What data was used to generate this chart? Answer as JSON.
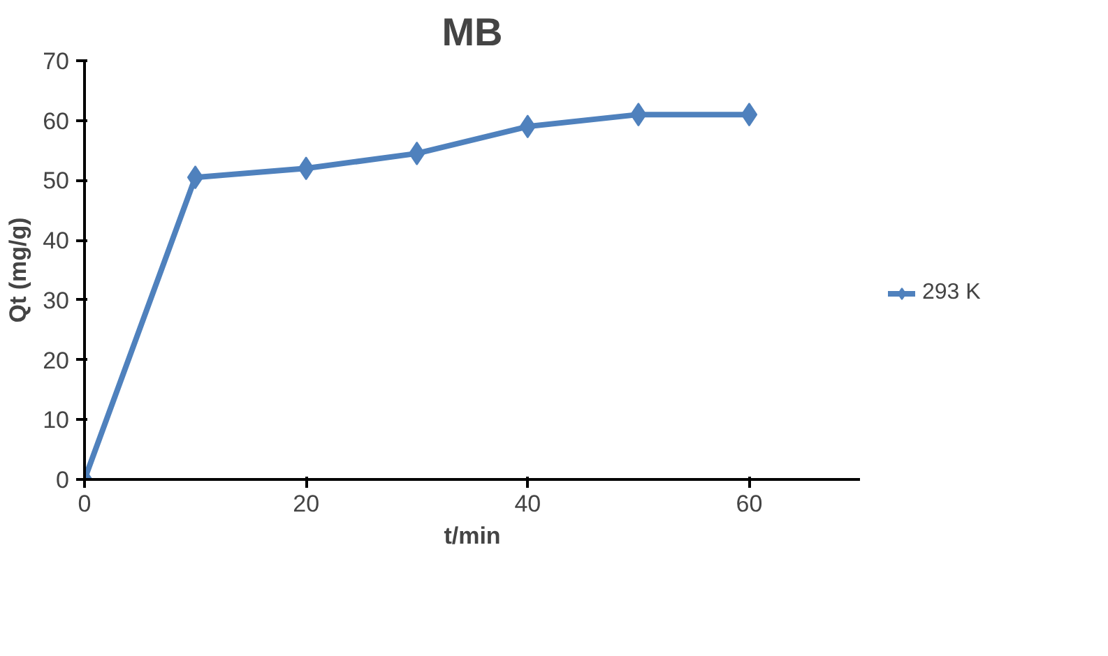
{
  "chart_data": {
    "type": "line",
    "title": "MB",
    "xlabel": "t/min",
    "ylabel": "Qt (mg/g)",
    "x": [
      0,
      10,
      20,
      30,
      40,
      50,
      60
    ],
    "series": [
      {
        "name": "293 K",
        "color": "#4f81bd",
        "values": [
          0,
          50.5,
          52,
          54.5,
          59,
          61,
          61
        ]
      }
    ],
    "xlim": [
      0,
      70
    ],
    "xticks": [
      0,
      20,
      40,
      60
    ],
    "ylim": [
      0,
      70
    ],
    "yticks": [
      0,
      10,
      20,
      30,
      40,
      50,
      60,
      70
    ],
    "grid": false,
    "legend": "right",
    "marker": "diamond",
    "line_style": "solid"
  }
}
